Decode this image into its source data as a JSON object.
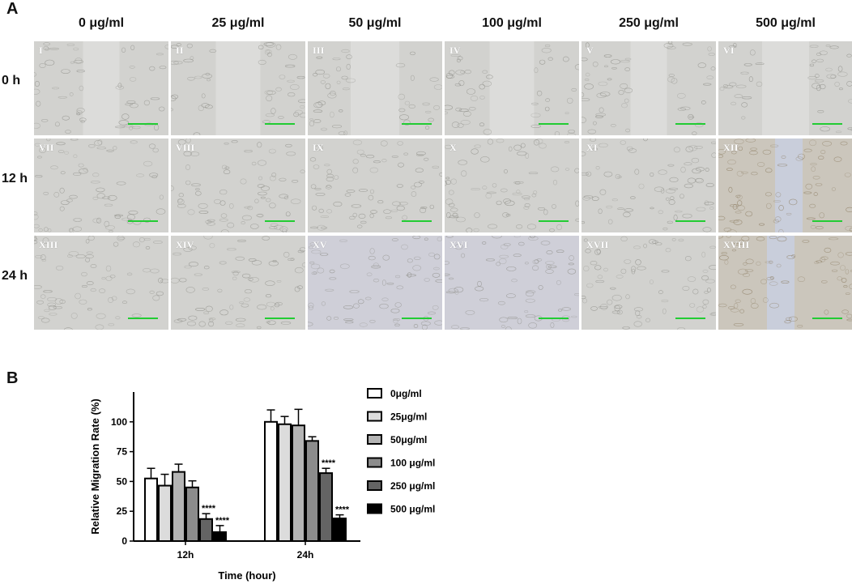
{
  "panel_a": {
    "label": "A",
    "columns": [
      "0 μg/ml",
      "25 μg/ml",
      "50 μg/ml",
      "100 μg/ml",
      "250 μg/ml",
      "500 μg/ml"
    ],
    "rows": [
      "0 h",
      "12 h",
      "24 h"
    ],
    "image_labels": [
      [
        "I",
        "II",
        "III",
        "IV",
        "V",
        "VI"
      ],
      [
        "VII",
        "VIII",
        "IX",
        "X",
        "XI",
        "XII"
      ],
      [
        "XIII",
        "XIV",
        "XV",
        "XVI",
        "XVII",
        "XVIII"
      ]
    ],
    "scale_bar_color": "#22cc33"
  },
  "panel_b": {
    "label": "B",
    "chart_data": {
      "type": "bar",
      "categories": [
        "12h",
        "24h"
      ],
      "xlabel": "Time (hour)",
      "ylabel": "Relative Migration Rate (%)",
      "ylim": [
        0,
        125
      ],
      "yticks": [
        0,
        25,
        50,
        75,
        100
      ],
      "legend_position": "right",
      "series": [
        {
          "name": "0μg/ml",
          "color": "#ffffff",
          "values": [
            52.5,
            100
          ],
          "errors": [
            8.5,
            10
          ],
          "marks": [
            "",
            ""
          ]
        },
        {
          "name": "25μg/ml",
          "color": "#dcdcdc",
          "values": [
            46.5,
            98
          ],
          "errors": [
            9.5,
            6.5
          ],
          "marks": [
            "",
            ""
          ]
        },
        {
          "name": "50μg/ml",
          "color": "#b4b4b4",
          "values": [
            58,
            97
          ],
          "errors": [
            6.5,
            13.5
          ],
          "marks": [
            "",
            ""
          ]
        },
        {
          "name": "100 μg/ml",
          "color": "#8c8c8c",
          "values": [
            45,
            84
          ],
          "errors": [
            5.5,
            3.5
          ],
          "marks": [
            "",
            ""
          ]
        },
        {
          "name": "250 μg/ml",
          "color": "#646464",
          "values": [
            18.5,
            57
          ],
          "errors": [
            4.5,
            4
          ],
          "marks": [
            "****",
            "****"
          ]
        },
        {
          "name": "500 μg/ml",
          "color": "#000000",
          "values": [
            7.5,
            19
          ],
          "errors": [
            5.5,
            3
          ],
          "marks": [
            "****",
            "****"
          ]
        }
      ]
    }
  }
}
